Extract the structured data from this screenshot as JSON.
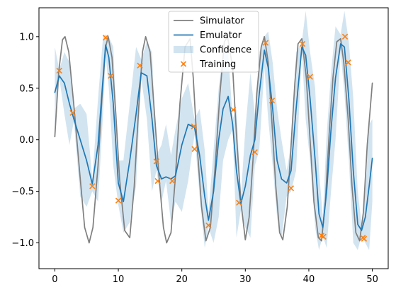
{
  "chart_data": {
    "type": "line",
    "title": "",
    "xlabel": "",
    "ylabel": "",
    "xlim": [
      -2.5,
      52.5
    ],
    "ylim": [
      -1.25,
      1.28
    ],
    "x_ticks": [
      0,
      10,
      20,
      30,
      40,
      50
    ],
    "x_tick_labels": [
      "0",
      "10",
      "20",
      "30",
      "40",
      "50"
    ],
    "y_ticks": [
      -1.0,
      -0.5,
      0.0,
      0.5,
      1.0
    ],
    "y_tick_labels": [
      "−1.0",
      "−0.5",
      "0.0",
      "0.5",
      "1.0"
    ],
    "grid": false,
    "legend": {
      "placement": "top-center",
      "entries": [
        {
          "name": "Simulator",
          "kind": "line",
          "color": "#7f7f7f"
        },
        {
          "name": "Emulator",
          "kind": "line",
          "color": "#1f77b4"
        },
        {
          "name": "Confidence",
          "kind": "band",
          "color": "#1f77b4"
        },
        {
          "name": "Training",
          "kind": "marker",
          "color": "#ff7f0e"
        }
      ]
    },
    "series": [
      {
        "name": "Simulator",
        "kind": "line",
        "color": "#7f7f7f",
        "x": [
          0,
          0.6,
          1.2,
          1.6,
          2.2,
          3.0,
          4.0,
          4.7,
          5.4,
          6.0,
          6.8,
          7.5,
          8.0,
          8.4,
          9.0,
          9.6,
          10.2,
          11.0,
          11.8,
          12.5,
          13.2,
          13.8,
          14.3,
          15.0,
          15.7,
          16.4,
          17.1,
          17.6,
          18.3,
          19.0,
          19.7,
          20.5,
          21.3,
          21.8,
          22.4,
          23.1,
          23.8,
          24.5,
          25.2,
          26.0,
          26.7,
          27.2,
          28.0,
          28.6,
          29.3,
          30.0,
          30.6,
          31.2,
          31.8,
          32.5,
          33.0,
          33.6,
          34.2,
          34.8,
          35.4,
          35.9,
          36.6,
          37.2,
          37.8,
          38.3,
          38.9,
          39.6,
          40.2,
          40.8,
          41.5,
          42.0,
          42.6,
          43.2,
          43.8,
          44.4,
          45.0,
          45.5,
          46.2,
          46.8,
          47.4,
          48.0,
          48.6,
          49.2,
          50.0
        ],
        "y": [
          0.03,
          0.65,
          0.97,
          1.0,
          0.85,
          0.33,
          -0.38,
          -0.85,
          -1.0,
          -0.85,
          -0.25,
          0.48,
          0.9,
          1.0,
          0.8,
          0.25,
          -0.38,
          -0.88,
          -0.95,
          -0.45,
          0.3,
          0.85,
          1.0,
          0.85,
          0.25,
          -0.35,
          -0.85,
          -1.0,
          -0.9,
          -0.35,
          0.35,
          0.9,
          0.98,
          0.6,
          -0.05,
          -0.65,
          -0.98,
          -0.85,
          -0.3,
          0.45,
          0.95,
          1.0,
          0.7,
          0.05,
          -0.6,
          -0.97,
          -0.75,
          -0.2,
          0.45,
          0.9,
          1.0,
          0.75,
          0.15,
          -0.45,
          -0.9,
          -0.97,
          -0.65,
          -0.05,
          0.55,
          0.93,
          0.98,
          0.6,
          0.0,
          -0.6,
          -0.95,
          -0.98,
          -0.6,
          0.05,
          0.6,
          0.95,
          0.98,
          0.75,
          0.2,
          -0.45,
          -0.9,
          -0.98,
          -0.7,
          -0.05,
          0.55
        ]
      },
      {
        "name": "Emulator",
        "kind": "line",
        "color": "#1f77b4",
        "x": [
          0,
          0.7,
          1.5,
          2.3,
          3.0,
          4.0,
          5.0,
          5.9,
          6.8,
          7.6,
          8.0,
          8.5,
          9.2,
          10.0,
          10.8,
          11.8,
          12.8,
          13.6,
          14.5,
          15.3,
          16.0,
          16.8,
          17.5,
          18.3,
          19.0,
          20.0,
          21.0,
          22.0,
          22.8,
          23.6,
          24.2,
          25.0,
          25.8,
          26.5,
          27.3,
          28.0,
          28.6,
          29.3,
          30.0,
          30.8,
          31.5,
          32.2,
          33.0,
          33.6,
          34.3,
          35.0,
          35.7,
          36.5,
          37.2,
          38.0,
          38.9,
          39.5,
          40.2,
          41.0,
          41.6,
          42.2,
          42.8,
          43.5,
          44.2,
          45.0,
          45.6,
          46.3,
          47.0,
          47.7,
          48.3,
          48.9,
          49.5,
          50.0
        ],
        "y": [
          0.46,
          0.62,
          0.55,
          0.35,
          0.2,
          0.0,
          -0.2,
          -0.43,
          -0.05,
          0.6,
          0.92,
          0.8,
          0.35,
          -0.42,
          -0.6,
          -0.2,
          0.25,
          0.65,
          0.62,
          0.2,
          -0.25,
          -0.38,
          -0.36,
          -0.38,
          -0.35,
          -0.05,
          0.15,
          0.12,
          -0.15,
          -0.55,
          -0.78,
          -0.5,
          0.0,
          0.3,
          0.42,
          0.15,
          -0.3,
          -0.62,
          -0.45,
          -0.15,
          0.0,
          0.45,
          0.87,
          0.7,
          0.3,
          -0.2,
          -0.38,
          -0.42,
          -0.3,
          0.3,
          0.9,
          0.82,
          0.4,
          -0.2,
          -0.72,
          -0.85,
          -0.5,
          0.1,
          0.6,
          0.93,
          0.9,
          0.4,
          -0.3,
          -0.82,
          -0.88,
          -0.75,
          -0.45,
          -0.18
        ]
      },
      {
        "name": "Confidence",
        "kind": "band",
        "color": "#1f77b4",
        "x": [
          0,
          0.7,
          1.5,
          2.3,
          3.0,
          4.0,
          5.0,
          5.9,
          6.8,
          7.6,
          8.0,
          8.5,
          9.2,
          10.0,
          10.8,
          11.8,
          12.8,
          13.6,
          14.5,
          15.3,
          16.0,
          16.8,
          17.5,
          18.3,
          19.0,
          20.0,
          21.0,
          22.0,
          22.8,
          23.6,
          24.2,
          25.0,
          25.8,
          26.5,
          27.3,
          28.0,
          28.6,
          29.3,
          30.0,
          30.8,
          31.5,
          32.2,
          33.0,
          33.6,
          34.3,
          35.0,
          35.7,
          36.5,
          37.2,
          38.0,
          38.9,
          39.5,
          40.2,
          41.0,
          41.6,
          42.2,
          42.8,
          43.5,
          44.2,
          45.0,
          45.6,
          46.3,
          47.0,
          47.7,
          48.3,
          48.9,
          49.5,
          50.0
        ],
        "lower": [
          0.01,
          0.6,
          0.25,
          -0.05,
          0.18,
          -0.55,
          -0.65,
          -0.5,
          -0.6,
          0.25,
          0.82,
          0.5,
          -0.25,
          -0.63,
          -0.9,
          -0.8,
          -0.45,
          0.6,
          0.2,
          -0.5,
          -0.3,
          -0.6,
          -0.4,
          -0.8,
          -0.6,
          -0.7,
          -0.4,
          0.05,
          -0.55,
          -1.05,
          -0.85,
          -1.0,
          -0.75,
          -0.2,
          0.0,
          0.1,
          -0.95,
          -0.68,
          -0.85,
          -0.95,
          -0.25,
          -0.1,
          0.7,
          0.2,
          -0.25,
          -0.75,
          -0.95,
          -0.55,
          -0.5,
          -0.3,
          0.85,
          0.2,
          -0.2,
          -0.85,
          -1.07,
          -0.93,
          -1.05,
          -0.5,
          0.0,
          0.85,
          0.45,
          -0.2,
          -1.0,
          -1.07,
          -0.93,
          -1.0,
          -1.07,
          -0.6
        ],
        "upper": [
          0.9,
          0.68,
          0.85,
          0.75,
          0.3,
          0.35,
          0.25,
          -0.38,
          0.4,
          1.0,
          1.02,
          1.0,
          0.9,
          -0.2,
          -0.2,
          0.35,
          0.9,
          0.78,
          0.95,
          0.85,
          -0.15,
          -0.05,
          0.15,
          -0.15,
          0.1,
          0.4,
          0.55,
          0.2,
          0.3,
          -0.1,
          -0.7,
          -0.1,
          0.5,
          0.85,
          0.85,
          0.2,
          0.3,
          -0.55,
          0.1,
          0.65,
          0.25,
          0.85,
          1.0,
          1.05,
          0.75,
          0.3,
          0.0,
          -0.3,
          -0.05,
          0.85,
          0.95,
          1.25,
          0.85,
          0.5,
          -0.3,
          -0.75,
          0.05,
          0.65,
          1.1,
          1.02,
          1.25,
          0.95,
          0.4,
          -0.5,
          -0.82,
          -0.5,
          0.15,
          0.2
        ]
      },
      {
        "name": "Training",
        "kind": "scatter",
        "color": "#ff7f0e",
        "x": [
          0.7,
          2.8,
          5.9,
          8.0,
          8.8,
          10.0,
          13.4,
          16.0,
          16.2,
          18.5,
          21.9,
          22.0,
          24.2,
          28.1,
          29.0,
          31.5,
          33.2,
          34.2,
          37.2,
          39.0,
          40.2,
          42.0,
          42.3,
          45.7,
          46.2,
          48.5,
          48.7
        ],
        "y": [
          0.67,
          0.26,
          -0.45,
          0.99,
          0.62,
          -0.59,
          0.72,
          -0.21,
          -0.4,
          -0.4,
          0.13,
          -0.09,
          -0.83,
          0.29,
          -0.61,
          -0.12,
          0.94,
          0.38,
          -0.47,
          0.93,
          0.61,
          -0.93,
          -0.94,
          1.0,
          0.75,
          -0.95,
          -0.96
        ]
      }
    ]
  }
}
